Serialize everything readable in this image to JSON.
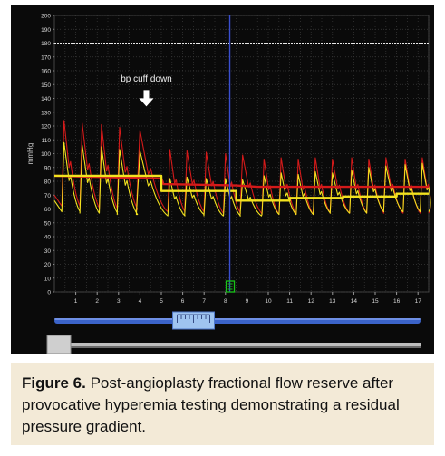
{
  "figure": {
    "label": "Figure 6.",
    "text": " Post-angioplasty fractional flow reserve after provocative hyperemia testing demonstrating a residual pressure gradient."
  },
  "viewer": {
    "annotation": "bp cuff down",
    "annotation_icon": "down-arrow-icon",
    "cursor_marker_icon": "cursor-marker-icon",
    "timeline_ruler_icon": "ruler-icon",
    "colors": {
      "background": "#0a0a0a",
      "grid": "#3a3a3a",
      "axis_text": "#d8d8d8",
      "aortic_pressure": "#d41a1a",
      "distal_pressure": "#f2e21f",
      "cursor": "#3a4fd0",
      "marker": "#19c219",
      "reference_line": "#e8e8e8",
      "slider_track": "#3b63c8"
    },
    "timeline_position": 0.38,
    "scrollbar_position": 0.0
  },
  "chart_data": {
    "type": "line",
    "ylabel": "mmHg",
    "xlabel": "",
    "ylim": [
      0,
      200
    ],
    "xlim": [
      0,
      17.5
    ],
    "y_ticks": [
      0,
      10,
      20,
      30,
      40,
      50,
      60,
      70,
      80,
      90,
      100,
      110,
      120,
      130,
      140,
      150,
      160,
      170,
      180,
      190,
      200
    ],
    "x_ticks": [
      1,
      2,
      3,
      4,
      5,
      6,
      7,
      8,
      9,
      10,
      11,
      12,
      13,
      14,
      15,
      16,
      17
    ],
    "reference_line": 180,
    "cursor_x": 8.2,
    "annotation": {
      "text": "bp cuff down",
      "x": 4.3
    },
    "series": [
      {
        "kind": "phasic_pulse",
        "color": "#d41a1a",
        "beats": [
          0.45,
          1.3,
          2.2,
          3.05,
          4.0,
          5.4,
          6.2,
          7.1,
          8.0,
          8.8,
          9.8,
          10.6,
          11.4,
          12.2,
          13.0,
          13.9,
          14.7,
          15.5,
          16.4,
          17.2
        ],
        "peaks": [
          124,
          122,
          121,
          119,
          117,
          103,
          102,
          101,
          100,
          99,
          96,
          97,
          96,
          97,
          96,
          97,
          96,
          97,
          96,
          97
        ],
        "troughs": [
          62,
          61,
          60,
          60,
          59,
          58,
          58,
          57,
          57,
          57,
          56,
          57,
          56,
          57,
          57,
          57,
          57,
          57,
          57,
          57
        ]
      },
      {
        "kind": "phasic_pulse",
        "color": "#f2e21f",
        "beats": [
          0.45,
          1.3,
          2.2,
          3.05,
          4.0,
          5.4,
          6.2,
          7.1,
          8.0,
          8.8,
          9.8,
          10.6,
          11.4,
          12.2,
          13.0,
          13.9,
          14.7,
          15.5,
          16.4,
          17.2
        ],
        "peaks": [
          108,
          106,
          105,
          103,
          102,
          82,
          83,
          82,
          82,
          81,
          84,
          86,
          85,
          87,
          86,
          88,
          90,
          91,
          92,
          93
        ],
        "troughs": [
          58,
          57,
          57,
          56,
          56,
          55,
          56,
          55,
          55,
          55,
          56,
          56,
          56,
          57,
          57,
          57,
          58,
          58,
          58,
          58
        ]
      },
      {
        "kind": "mean_step",
        "color": "#d41a1a",
        "points": [
          [
            0,
            84
          ],
          [
            5,
            82
          ],
          [
            5.1,
            78
          ],
          [
            8.5,
            77
          ],
          [
            9.5,
            76
          ],
          [
            17.5,
            76
          ]
        ]
      },
      {
        "kind": "mean_step",
        "color": "#f2e21f",
        "points": [
          [
            0,
            84
          ],
          [
            5,
            84
          ],
          [
            5,
            73
          ],
          [
            8.5,
            73
          ],
          [
            8.5,
            66
          ],
          [
            11,
            66
          ],
          [
            11,
            68
          ],
          [
            13.5,
            68
          ],
          [
            13.5,
            69
          ],
          [
            16,
            69
          ],
          [
            16,
            71
          ],
          [
            17.5,
            71
          ]
        ]
      }
    ]
  }
}
